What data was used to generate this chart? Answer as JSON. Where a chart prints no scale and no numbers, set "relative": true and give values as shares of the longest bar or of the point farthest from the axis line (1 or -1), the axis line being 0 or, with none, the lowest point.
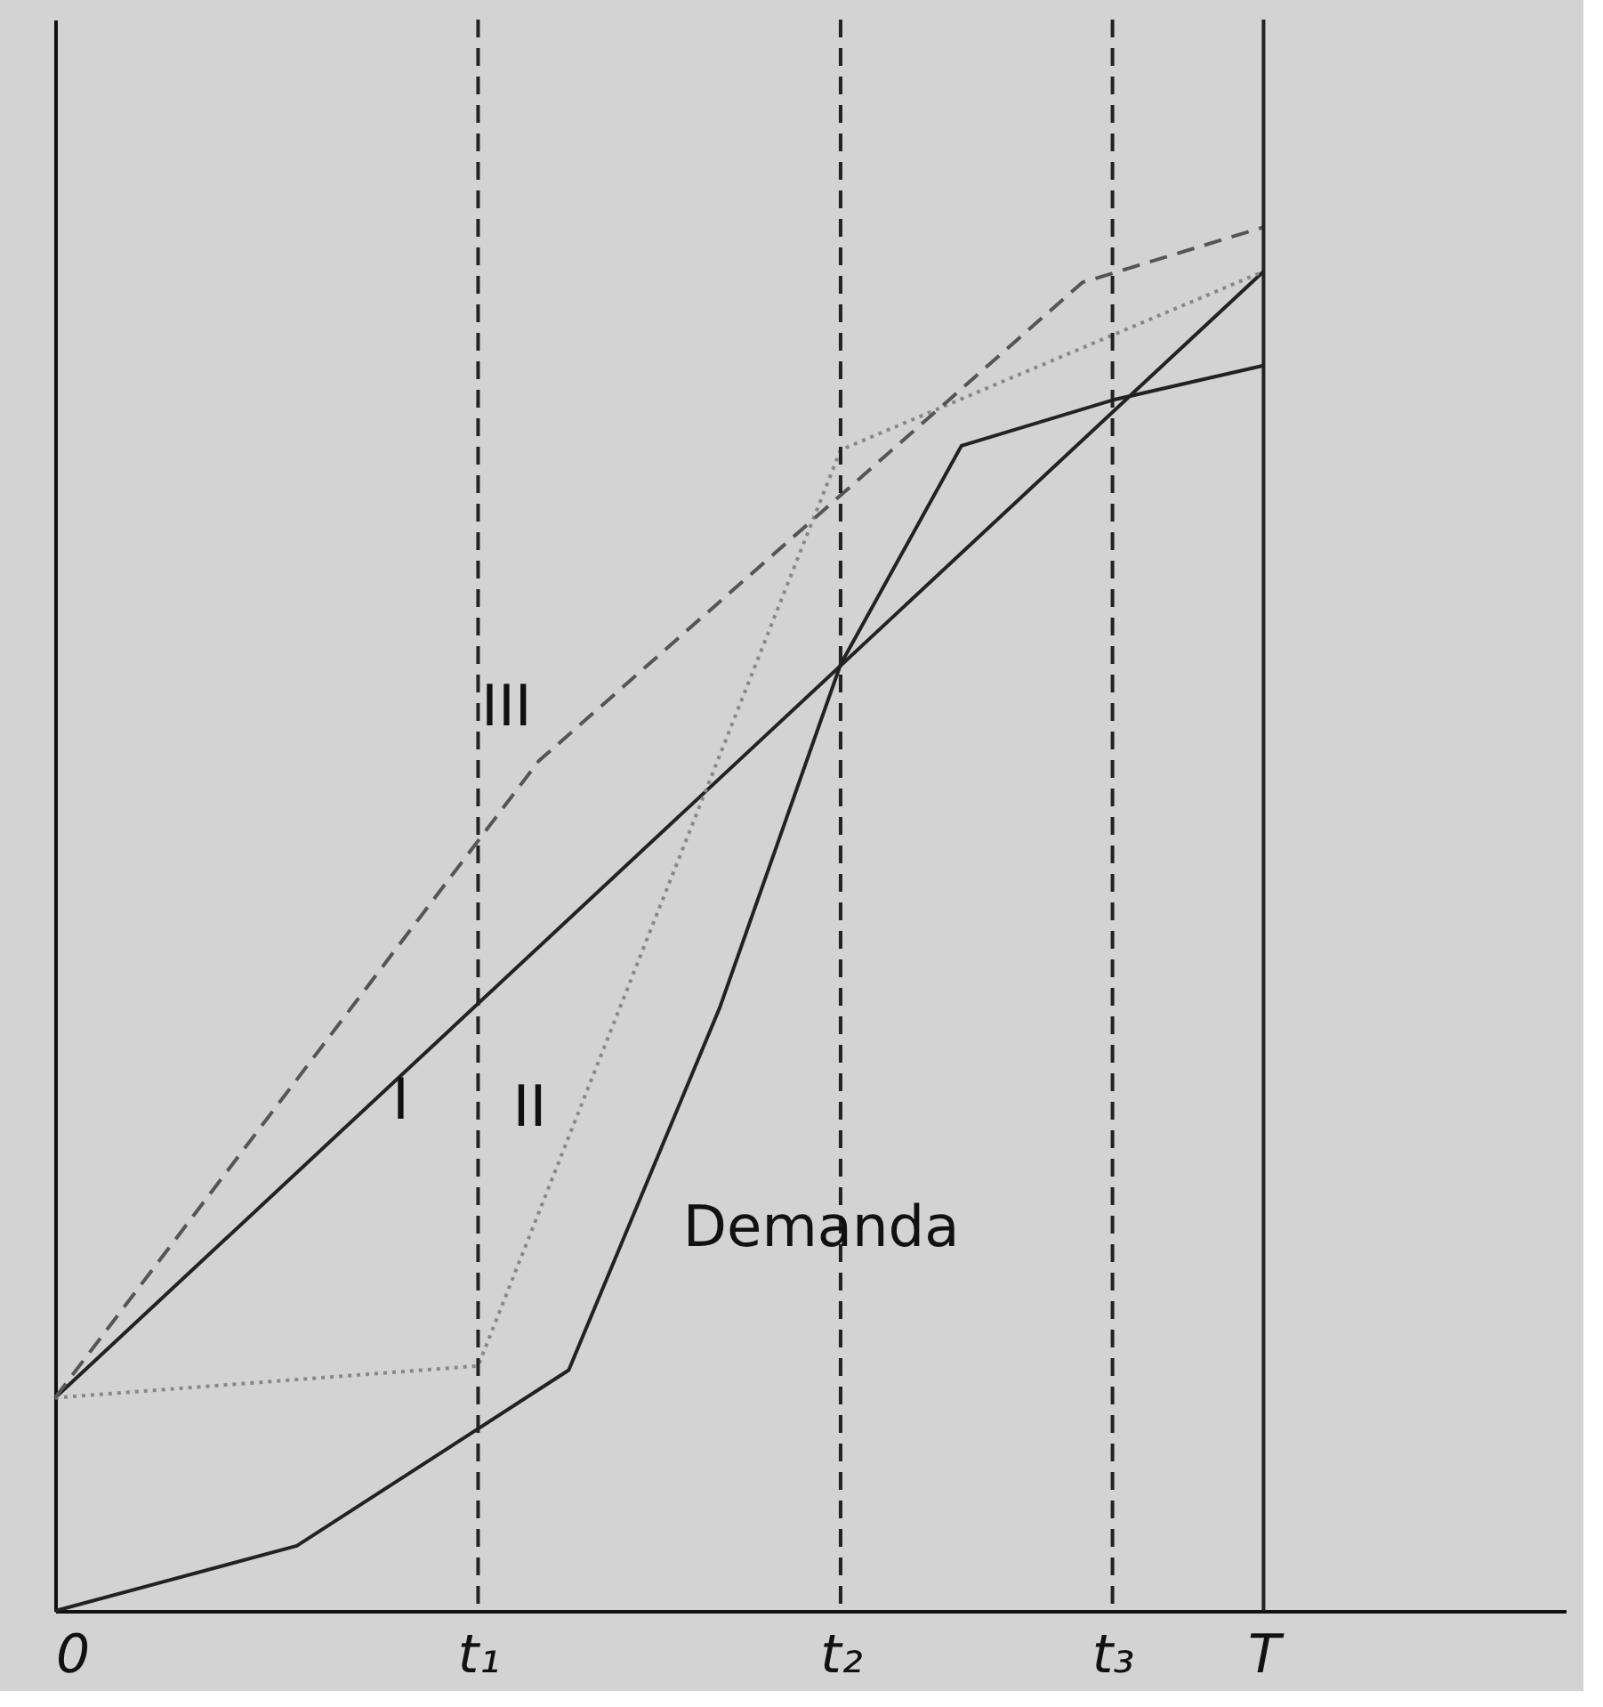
{
  "chart_data": {
    "type": "line",
    "relative": true,
    "categories": [
      "0",
      null,
      null,
      null,
      null,
      null,
      null,
      null,
      null,
      null,
      null,
      null,
      null,
      null,
      "t₁",
      null,
      null,
      null,
      null,
      null,
      null,
      null,
      null,
      null,
      null,
      null,
      "t₂",
      null,
      null,
      null,
      null,
      null,
      null,
      null,
      null,
      "t₃",
      null,
      null,
      null,
      null,
      "T",
      null,
      null,
      null,
      null,
      null,
      null,
      null,
      null,
      null,
      null
    ],
    "series": [
      {
        "name": "Demanda",
        "color": "#222222",
        "line_style": "solid",
        "values": [
          0,
          null,
          null,
          null,
          null,
          null,
          null,
          null,
          0.047,
          null,
          null,
          null,
          null,
          null,
          null,
          null,
          null,
          0.174,
          null,
          null,
          null,
          null,
          0.436,
          null,
          null,
          null,
          0.684,
          null,
          null,
          null,
          0.842,
          null,
          null,
          null,
          null,
          0.875,
          null,
          null,
          null,
          null,
          0.9,
          null,
          null,
          null,
          null,
          null,
          null,
          null,
          null,
          null,
          null
        ]
      },
      {
        "name": "I",
        "color": "#222222",
        "line_style": "solid",
        "values": [
          0.154,
          null,
          null,
          null,
          null,
          null,
          null,
          null,
          null,
          null,
          null,
          null,
          null,
          null,
          null,
          null,
          null,
          null,
          null,
          null,
          null,
          null,
          null,
          null,
          null,
          null,
          null,
          null,
          null,
          null,
          null,
          null,
          null,
          null,
          null,
          null,
          null,
          null,
          null,
          null,
          0.968,
          null,
          null,
          null,
          null,
          null,
          null,
          null,
          null,
          null,
          null
        ]
      },
      {
        "name": "II",
        "color": "#888888",
        "line_style": "dotted",
        "values": [
          0.154,
          null,
          null,
          null,
          null,
          null,
          null,
          null,
          null,
          null,
          null,
          null,
          null,
          null,
          0.177,
          null,
          null,
          null,
          null,
          null,
          null,
          null,
          null,
          null,
          null,
          null,
          0.839,
          null,
          null,
          null,
          null,
          null,
          null,
          null,
          null,
          null,
          null,
          null,
          null,
          null,
          0.968,
          null,
          null,
          null,
          null,
          null,
          null,
          null,
          null,
          null,
          null
        ]
      },
      {
        "name": "III",
        "color": "#555555",
        "line_style": "dashed",
        "values": [
          0.154,
          null,
          null,
          null,
          null,
          null,
          null,
          null,
          null,
          null,
          null,
          null,
          null,
          null,
          null,
          null,
          0.614,
          null,
          null,
          null,
          null,
          null,
          null,
          null,
          null,
          null,
          null,
          null,
          null,
          null,
          null,
          null,
          null,
          null,
          0.96,
          null,
          null,
          null,
          null,
          null,
          1.0,
          null,
          null,
          null,
          null,
          null,
          null,
          null,
          null,
          null,
          null
        ]
      }
    ],
    "ref_lines": [
      {
        "axis": "x",
        "value": "t₁",
        "line_style": "dashed",
        "color": "#222222"
      },
      {
        "axis": "x",
        "value": "t₂",
        "line_style": "dashed",
        "color": "#222222"
      },
      {
        "axis": "x",
        "value": "t₃",
        "line_style": "dashed",
        "color": "#222222"
      },
      {
        "axis": "x",
        "value": "T",
        "line_style": "solid",
        "color": "#222222"
      }
    ],
    "grid": false,
    "marker": "none"
  }
}
